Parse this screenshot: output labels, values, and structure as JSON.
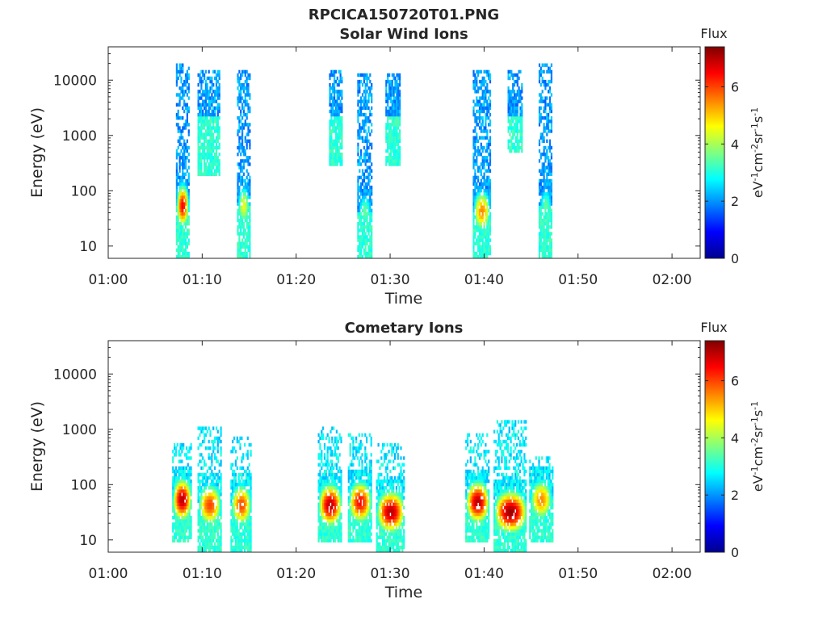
{
  "figure_title": "RPCICA150720T01.PNG",
  "chart_data": [
    {
      "type": "heatmap",
      "title": "Solar Wind Ions",
      "xlabel": "Time",
      "ylabel": "Energy (eV)",
      "y_scale": "log",
      "x_ticks": [
        "01:00",
        "01:10",
        "01:20",
        "01:30",
        "01:40",
        "01:50",
        "02:00"
      ],
      "y_ticks": [
        "10",
        "100",
        "1000",
        "10000"
      ],
      "x_range": [
        "01:00",
        "02:03"
      ],
      "y_range": [
        6,
        40000
      ],
      "colorbar": {
        "label": "Flux",
        "units": "eV-1cm-2sr-1s-1",
        "ticks": [
          "0",
          "2",
          "4",
          "6"
        ],
        "range": [
          0,
          7.4
        ],
        "colormap": "jet"
      },
      "bursts": [
        {
          "t_start": "01:07.2",
          "t_end": "01:08.5",
          "e_min": 6,
          "e_max": 20000,
          "peak_energy": 50,
          "peak_flux": 6.5
        },
        {
          "t_start": "01:09.5",
          "t_end": "01:11.8",
          "e_min": 200,
          "e_max": 15000,
          "peak_energy": 2000,
          "peak_flux": 2.0
        },
        {
          "t_start": "01:13.7",
          "t_end": "01:15.0",
          "e_min": 6,
          "e_max": 15000,
          "peak_energy": 50,
          "peak_flux": 4.5
        },
        {
          "t_start": "01:23.5",
          "t_end": "01:24.8",
          "e_min": 300,
          "e_max": 15000,
          "peak_energy": 2000,
          "peak_flux": 2.0
        },
        {
          "t_start": "01:26.5",
          "t_end": "01:28.0",
          "e_min": 6,
          "e_max": 12000,
          "peak_energy": 40,
          "peak_flux": 3.5
        },
        {
          "t_start": "01:29.5",
          "t_end": "01:31.0",
          "e_min": 300,
          "e_max": 12000,
          "peak_energy": 2000,
          "peak_flux": 2.0
        },
        {
          "t_start": "01:38.8",
          "t_end": "01:40.6",
          "e_min": 6,
          "e_max": 15000,
          "peak_energy": 40,
          "peak_flux": 5.5
        },
        {
          "t_start": "01:42.5",
          "t_end": "01:44.0",
          "e_min": 500,
          "e_max": 15000,
          "peak_energy": 2000,
          "peak_flux": 2.0
        },
        {
          "t_start": "01:45.8",
          "t_end": "01:47.2",
          "e_min": 6,
          "e_max": 20000,
          "peak_energy": 50,
          "peak_flux": 3.5
        }
      ]
    },
    {
      "type": "heatmap",
      "title": "Cometary Ions",
      "xlabel": "Time",
      "ylabel": "Energy (eV)",
      "y_scale": "log",
      "x_ticks": [
        "01:00",
        "01:10",
        "01:20",
        "01:30",
        "01:40",
        "01:50",
        "02:00"
      ],
      "y_ticks": [
        "10",
        "100",
        "1000",
        "10000"
      ],
      "x_range": [
        "01:00",
        "02:03"
      ],
      "y_range": [
        6,
        40000
      ],
      "colorbar": {
        "label": "Flux",
        "units": "eV-1cm-2sr-1s-1",
        "ticks": [
          "0",
          "2",
          "4",
          "6"
        ],
        "range": [
          0,
          7.4
        ],
        "colormap": "jet"
      },
      "bursts": [
        {
          "t_start": "01:06.8",
          "t_end": "01:08.8",
          "e_min": 10,
          "e_max": 500,
          "peak_energy": 50,
          "peak_flux": 7.0
        },
        {
          "t_start": "01:09.5",
          "t_end": "01:12.0",
          "e_min": 6,
          "e_max": 1000,
          "peak_energy": 40,
          "peak_flux": 6.0
        },
        {
          "t_start": "01:13.0",
          "t_end": "01:15.2",
          "e_min": 6,
          "e_max": 700,
          "peak_energy": 40,
          "peak_flux": 6.0
        },
        {
          "t_start": "01:22.3",
          "t_end": "01:24.8",
          "e_min": 10,
          "e_max": 1000,
          "peak_energy": 40,
          "peak_flux": 7.0
        },
        {
          "t_start": "01:25.5",
          "t_end": "01:28.0",
          "e_min": 10,
          "e_max": 800,
          "peak_energy": 45,
          "peak_flux": 6.5
        },
        {
          "t_start": "01:28.5",
          "t_end": "01:31.5",
          "e_min": 6,
          "e_max": 500,
          "peak_energy": 30,
          "peak_flux": 7.0
        },
        {
          "t_start": "01:38.0",
          "t_end": "01:40.5",
          "e_min": 10,
          "e_max": 800,
          "peak_energy": 45,
          "peak_flux": 7.0
        },
        {
          "t_start": "01:41.0",
          "t_end": "01:44.5",
          "e_min": 6,
          "e_max": 1300,
          "peak_energy": 30,
          "peak_flux": 7.2
        },
        {
          "t_start": "01:44.8",
          "t_end": "01:47.2",
          "e_min": 10,
          "e_max": 300,
          "peak_energy": 50,
          "peak_flux": 5.5
        }
      ]
    }
  ]
}
